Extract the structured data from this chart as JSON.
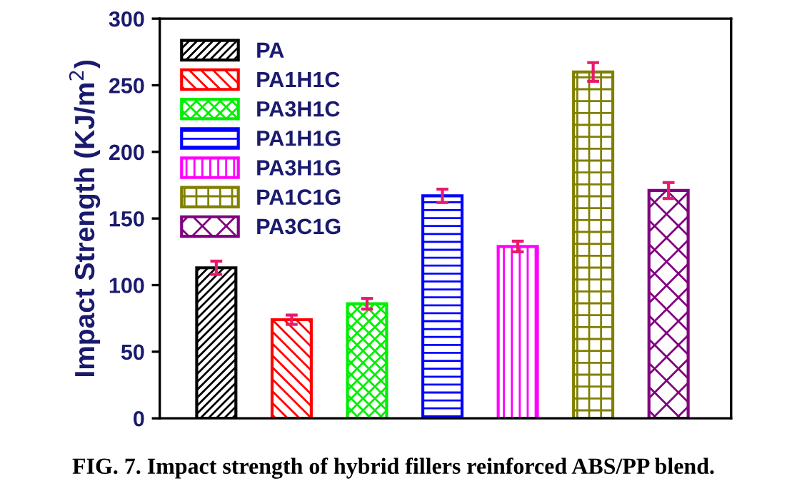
{
  "chart_data": {
    "type": "bar",
    "ylabel": "Impact Strength (KJ/m$^{2}$)",
    "categories": [
      null,
      null,
      null,
      null,
      null,
      null,
      null
    ],
    "series": [
      {
        "name": "PA",
        "color": "#000000",
        "values": [
          113,
          null,
          null,
          null,
          null,
          null,
          null
        ],
        "errors": [
          5,
          null,
          null,
          null,
          null,
          null,
          null
        ]
      },
      {
        "name": "PA1H1C",
        "color": "#ff0000",
        "values": [
          null,
          74,
          null,
          null,
          null,
          null,
          null
        ],
        "errors": [
          null,
          3.5,
          null,
          null,
          null,
          null,
          null
        ]
      },
      {
        "name": "PA3H1C",
        "color": "#00ee00",
        "values": [
          null,
          null,
          86,
          null,
          null,
          null,
          null
        ],
        "errors": [
          null,
          null,
          4,
          null,
          null,
          null,
          null
        ]
      },
      {
        "name": "PA1H1G",
        "color": "#0000ff",
        "values": [
          null,
          null,
          null,
          167,
          null,
          null,
          null
        ],
        "errors": [
          null,
          null,
          null,
          5,
          null,
          null,
          null
        ]
      },
      {
        "name": "PA3H1G",
        "color": "#ff00ff",
        "values": [
          null,
          null,
          null,
          null,
          129,
          null,
          null
        ],
        "errors": [
          null,
          null,
          null,
          null,
          4,
          null,
          null
        ]
      },
      {
        "name": "PA1C1G",
        "color": "#808000",
        "values": [
          null,
          null,
          null,
          null,
          null,
          260,
          null
        ],
        "errors": [
          null,
          null,
          null,
          null,
          null,
          7,
          null
        ]
      },
      {
        "name": "PA3C1G",
        "color": "#800080",
        "values": [
          null,
          null,
          null,
          null,
          null,
          null,
          171
        ],
        "errors": [
          null,
          null,
          null,
          null,
          null,
          null,
          6
        ]
      }
    ],
    "ylim": [
      0,
      300
    ],
    "yticks": [
      0,
      50,
      100,
      150,
      200,
      250,
      300
    ],
    "grid": false,
    "legend": "top left",
    "annotations": [
      "FIG. 7. Impact strength of hybrid fillers reinforced ABS/PP blend."
    ]
  }
}
